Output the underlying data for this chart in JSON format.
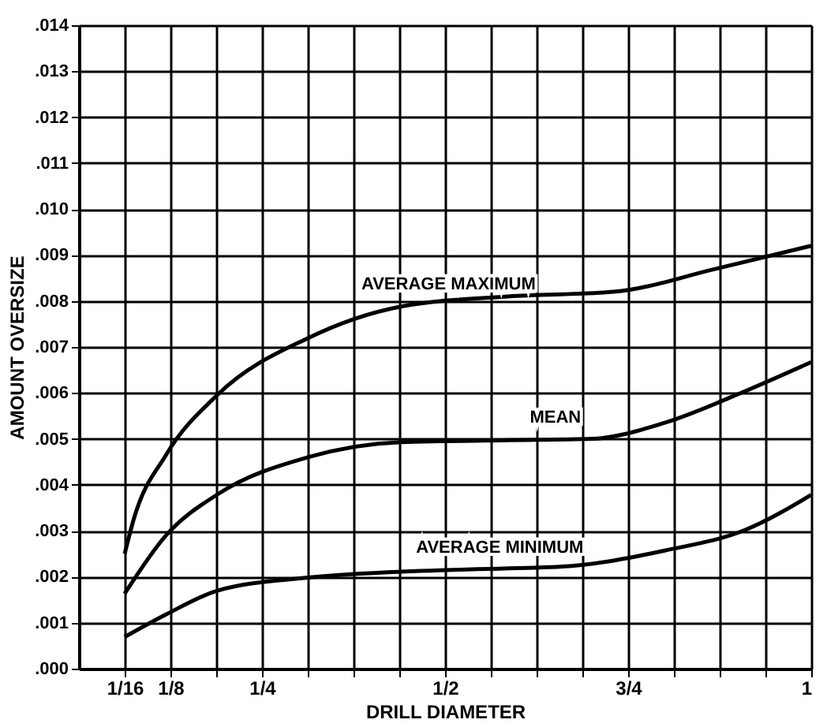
{
  "chart_data": {
    "type": "line",
    "xlabel": "DRILL DIAMETER",
    "ylabel": "AMOUNT OVERSIZE",
    "series": [
      {
        "name": "AVERAGE MAXIMUM",
        "color": "#000000",
        "x": [
          0.0625,
          0.075,
          0.119,
          0.19,
          0.3125,
          0.44,
          0.586,
          0.73,
          0.87,
          1.0
        ],
        "values": [
          0.0025,
          0.00326,
          0.00465,
          0.00597,
          0.00719,
          0.00788,
          0.0081,
          0.0082,
          0.0087,
          0.0092
        ]
      },
      {
        "name": "MEAN",
        "color": "#000000",
        "x": [
          0.0625,
          0.119,
          0.19,
          0.3125,
          0.44,
          0.586,
          0.7,
          0.8,
          0.91,
          1.0
        ],
        "values": [
          0.00163,
          0.0029,
          0.0038,
          0.0046,
          0.00493,
          0.00497,
          0.005,
          0.00535,
          0.00604,
          0.00667
        ]
      },
      {
        "name": "AVERAGE MINIMUM",
        "color": "#000000",
        "x": [
          0.0625,
          0.119,
          0.19,
          0.3125,
          0.51,
          0.66,
          0.8,
          0.91,
          1.0
        ],
        "values": [
          0.00069,
          0.00118,
          0.0017,
          0.00198,
          0.00215,
          0.00222,
          0.00257,
          0.00302,
          0.00378
        ]
      }
    ],
    "legend": false,
    "xlim": [
      0,
      1
    ],
    "xticks": [
      {
        "value": 0.0625,
        "label": "1/16"
      },
      {
        "value": 0.125,
        "label": "1/8"
      },
      {
        "value": 0.1875,
        "label": null
      },
      {
        "value": 0.25,
        "label": "1/4"
      },
      {
        "value": 0.3125,
        "label": null
      },
      {
        "value": 0.375,
        "label": null
      },
      {
        "value": 0.4375,
        "label": null
      },
      {
        "value": 0.5,
        "label": "1/2"
      },
      {
        "value": 0.5625,
        "label": null
      },
      {
        "value": 0.625,
        "label": null
      },
      {
        "value": 0.6875,
        "label": null
      },
      {
        "value": 0.75,
        "label": "3/4"
      },
      {
        "value": 0.8125,
        "label": null
      },
      {
        "value": 0.875,
        "label": null
      },
      {
        "value": 0.9375,
        "label": null
      },
      {
        "value": 1,
        "label": "1"
      }
    ],
    "ylim": [
      0,
      0.014
    ],
    "yticks": [
      {
        "value": 0,
        "label": ".000"
      },
      {
        "value": 0.001,
        "label": ".001"
      },
      {
        "value": 0.002,
        "label": ".002"
      },
      {
        "value": 0.003,
        "label": ".003"
      },
      {
        "value": 0.004,
        "label": ".004"
      },
      {
        "value": 0.005,
        "label": ".005"
      },
      {
        "value": 0.006,
        "label": ".006"
      },
      {
        "value": 0.007,
        "label": ".007"
      },
      {
        "value": 0.008,
        "label": ".008"
      },
      {
        "value": 0.009,
        "label": ".009"
      },
      {
        "value": 0.01,
        "label": ".010"
      },
      {
        "value": 0.011,
        "label": ".011"
      },
      {
        "value": 0.012,
        "label": ".012"
      },
      {
        "value": 0.013,
        "label": ".013"
      },
      {
        "value": 0.014,
        "label": ".014"
      }
    ],
    "grid": true,
    "marker": "none",
    "line_style": "solid"
  }
}
